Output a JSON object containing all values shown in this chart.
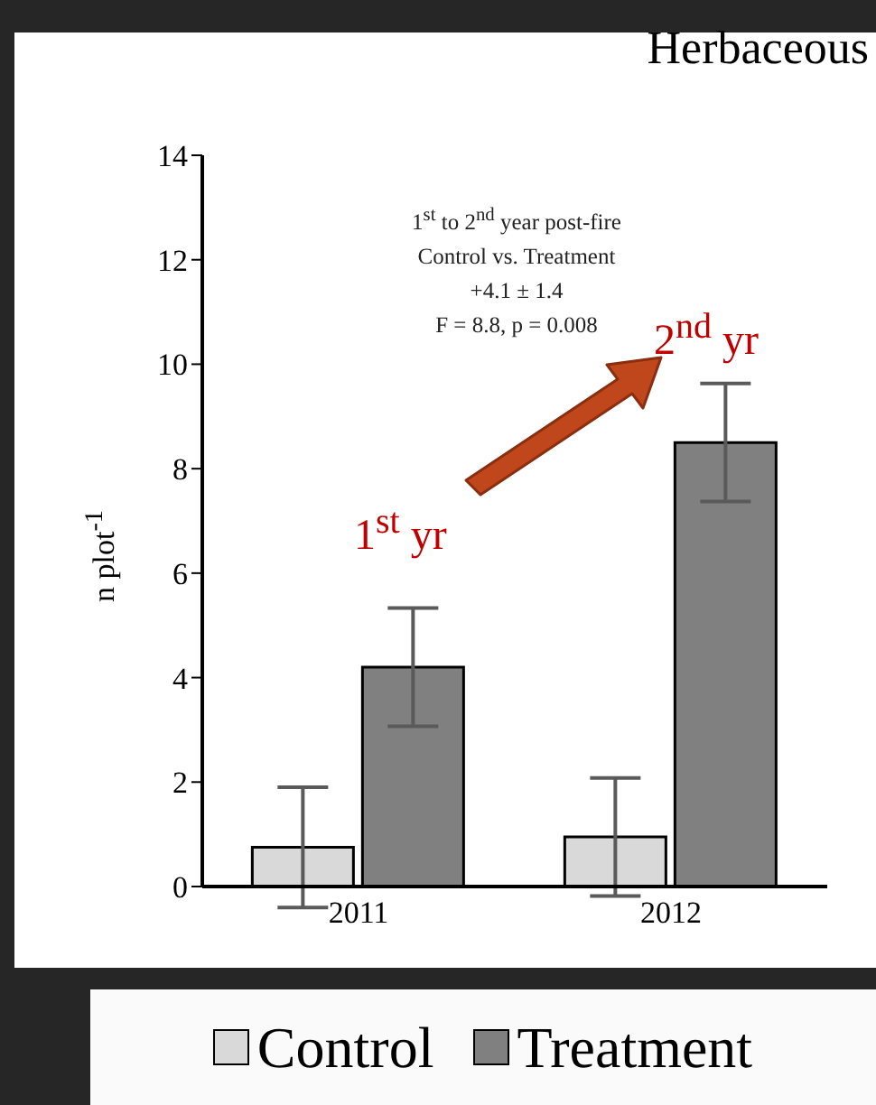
{
  "chart_data": {
    "type": "bar",
    "title": "Herbaceous",
    "ylabel": "n plot$^{-1}$",
    "categories": [
      "2011",
      "2012"
    ],
    "series": [
      {
        "name": "Control",
        "color": "#d9d9d9",
        "values": [
          0.75,
          0.95
        ],
        "errors": [
          1.15,
          1.13
        ]
      },
      {
        "name": "Treatment",
        "color": "#808080",
        "values": [
          4.2,
          8.5
        ],
        "errors": [
          1.13,
          1.13
        ]
      }
    ],
    "ylim": [
      0,
      14
    ],
    "yticks": [
      0,
      2,
      4,
      6,
      8,
      10,
      12,
      14
    ],
    "grid": false,
    "legend": "bottom",
    "annotations": [
      "1$^{st}$ to 2$^{nd}$ year post-fire",
      "Control vs. Treatment",
      "+4.1 ± 1.4",
      "F = 8.8, p = 0.008",
      "1$^{st}$ yr",
      "2$^{nd}$ yr"
    ]
  }
}
